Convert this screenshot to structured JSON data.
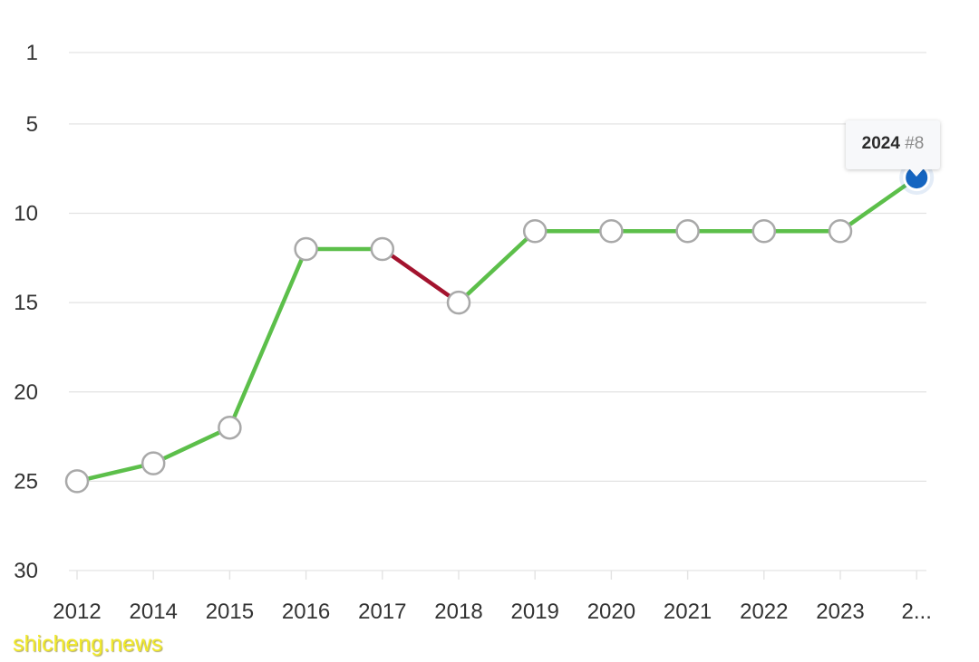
{
  "chart_data": {
    "type": "line",
    "title": "",
    "xlabel": "",
    "ylabel": "",
    "y_inverted": true,
    "ylim": [
      1,
      30
    ],
    "y_ticks": [
      "1",
      "5",
      "10",
      "15",
      "20",
      "25",
      "30"
    ],
    "y_tick_values": [
      1,
      5,
      10,
      15,
      20,
      25,
      30
    ],
    "x_tick_labels": [
      "2012",
      "2014",
      "2015",
      "2016",
      "2017",
      "2018",
      "2019",
      "2020",
      "2021",
      "2022",
      "2023",
      "2..."
    ],
    "series": [
      {
        "x": [
          "2012",
          "2014",
          "2015",
          "2016",
          "2017",
          "2018",
          "2019",
          "2020",
          "2021",
          "2022",
          "2023",
          "2024"
        ],
        "values": [
          25,
          24,
          22,
          12,
          12,
          15,
          11,
          11,
          11,
          11,
          11,
          8
        ]
      }
    ],
    "colors": {
      "up_or_same": "#5cbf4a",
      "down": "#a3132e",
      "marker_fill": "#ffffff",
      "marker_stroke": "#a9a9a9",
      "highlight": "#1565c0",
      "gridline": "#e3e3e3"
    },
    "grid": true,
    "tooltip": {
      "year": "2024",
      "rank": "#8"
    }
  },
  "watermark": "shicheng.news"
}
